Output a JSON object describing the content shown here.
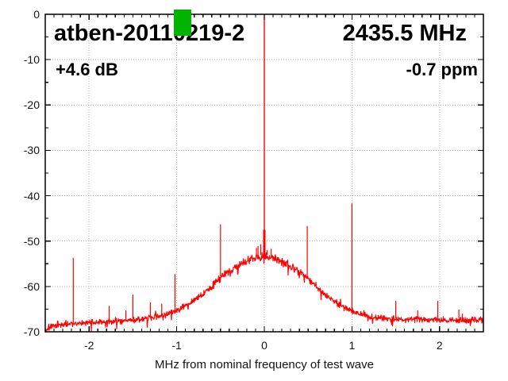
{
  "chart_data": {
    "type": "line",
    "title": "atben-20110219-2",
    "xlabel": "MHz from nominal frequency of test wave",
    "ylabel": "",
    "annotations": {
      "frequency": "2435.5 MHz",
      "gain": "+4.6 dB",
      "frequency_error": "-0.7 ppm"
    },
    "x_range": [
      -2.5,
      2.5
    ],
    "y_range": [
      -70,
      0
    ],
    "x_major_ticks": [
      -2,
      -1,
      0,
      1,
      2
    ],
    "x_minor_step": 0.1,
    "y_major_ticks": [
      0,
      -10,
      -20,
      -30,
      -40,
      -50,
      -60,
      -70
    ],
    "y_minor_step": 5,
    "grid": "dotted",
    "legend": "none",
    "trace_color": "#ff0000",
    "grid_color": "#b2b2b2",
    "marker_color": "#00b400",
    "carrier": {
      "x_mhz": 0,
      "peak_db": 0,
      "pedestal_top_db": -47.5
    },
    "noise_floor_db": [
      [
        -2.5,
        -70
      ],
      [
        -2.46,
        -69.2
      ],
      [
        -2.4,
        -68.7
      ],
      [
        -2.3,
        -68.3
      ],
      [
        -2.1,
        -68.1
      ],
      [
        -1.9,
        -67.9
      ],
      [
        -1.7,
        -67.6
      ],
      [
        -1.5,
        -67.4
      ],
      [
        -1.3,
        -66.9
      ],
      [
        -1.2,
        -66.6
      ],
      [
        -1.1,
        -66.1
      ],
      [
        -1.0,
        -65.3
      ],
      [
        -0.9,
        -64.3
      ],
      [
        -0.8,
        -63.1
      ],
      [
        -0.7,
        -61.7
      ],
      [
        -0.6,
        -60.0
      ],
      [
        -0.5,
        -58.1
      ],
      [
        -0.4,
        -56.6
      ],
      [
        -0.3,
        -55.4
      ],
      [
        -0.2,
        -54.4
      ],
      [
        -0.1,
        -53.6
      ],
      [
        -0.05,
        -53.4
      ],
      [
        0,
        -53.2
      ],
      [
        0.05,
        -53.4
      ],
      [
        0.1,
        -53.7
      ],
      [
        0.2,
        -54.5
      ],
      [
        0.3,
        -55.6
      ],
      [
        0.4,
        -56.9
      ],
      [
        0.5,
        -58.4
      ],
      [
        0.6,
        -60.2
      ],
      [
        0.7,
        -61.9
      ],
      [
        0.8,
        -63.3
      ],
      [
        0.9,
        -64.5
      ],
      [
        1.0,
        -65.4
      ],
      [
        1.1,
        -66.2
      ],
      [
        1.2,
        -66.7
      ],
      [
        1.4,
        -67.1
      ],
      [
        1.7,
        -67.3
      ],
      [
        2.0,
        -67.4
      ],
      [
        2.3,
        -67.5
      ],
      [
        2.5,
        -67.3
      ]
    ],
    "spurs_mhz_db": [
      [
        -2.18,
        -53.7
      ],
      [
        -1.77,
        -64.3
      ],
      [
        -1.58,
        -65.3
      ],
      [
        -1.5,
        -61.8
      ],
      [
        -1.3,
        -63.5
      ],
      [
        -1.17,
        -63.8
      ],
      [
        -1.02,
        -57.3
      ],
      [
        -0.69,
        -60.8
      ],
      [
        -0.5,
        -46.3
      ],
      [
        -0.09,
        -51.5
      ],
      [
        -0.072,
        -51.1
      ],
      [
        -0.042,
        -50.7
      ],
      [
        0.033,
        -52.0
      ],
      [
        0.078,
        -51.7
      ],
      [
        0.125,
        -52.9
      ],
      [
        0.49,
        -46.7
      ],
      [
        1.0,
        -41.7
      ],
      [
        1.5,
        -63.2
      ],
      [
        1.75,
        -65.3
      ],
      [
        1.98,
        -63.2
      ],
      [
        2.22,
        -65.1
      ],
      [
        2.26,
        -66.0
      ]
    ],
    "noise_amplitude_db": 0.8
  }
}
